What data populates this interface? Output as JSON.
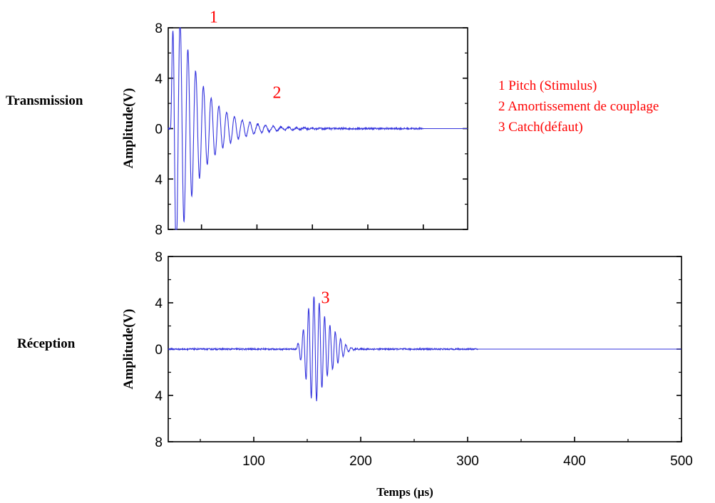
{
  "colors": {
    "signal": "#3333dd",
    "annotation": "#ff0000",
    "axis": "#000000"
  },
  "legend": {
    "items": [
      "1 Pitch (Stimulus)",
      "2 Amortissement de couplage",
      "3 Catch(défaut)"
    ]
  },
  "chart_data": [
    {
      "type": "line",
      "row_label": "Transmission",
      "ylabel": "Amplitude(V)",
      "xlabel": "",
      "xlim": [
        20,
        290
      ],
      "ylim": [
        -8,
        8
      ],
      "y_ticks": [
        8,
        4,
        0,
        -4,
        -8
      ],
      "y_tick_labels": [
        "8",
        "4",
        "0",
        "4",
        "8"
      ],
      "grid": false,
      "annotations": [
        {
          "text": "1",
          "x": 61,
          "y": 9
        },
        {
          "text": "2",
          "x": 118,
          "y": 3
        }
      ],
      "signal": {
        "description": "decaying burst",
        "start_x": 22,
        "peak_amplitude": 8,
        "decay_per_us": 0.045,
        "period_us": 7,
        "noise_until_x": 250,
        "noise_amplitude": 0.06
      }
    },
    {
      "type": "line",
      "row_label": "Réception",
      "ylabel": "Amplitude(V)",
      "xlabel": "Temps (µs)",
      "xlim": [
        20,
        500
      ],
      "ylim": [
        -8,
        8
      ],
      "x_ticks": [
        100,
        200,
        300,
        400,
        500
      ],
      "x_tick_labels": [
        "100",
        "200",
        "300",
        "400",
        "500"
      ],
      "y_ticks": [
        8,
        4,
        0,
        -4,
        -8
      ],
      "y_tick_labels": [
        "8",
        "4",
        "0",
        "4",
        "8"
      ],
      "grid": false,
      "annotations": [
        {
          "text": "3",
          "x": 167,
          "y": 4.6
        }
      ],
      "signal": {
        "description": "echo burst",
        "echo_center_x": 160,
        "peak_amplitude": 4.3,
        "period_us": 5,
        "noise_until_x": 310,
        "noise_amplitude": 0.06
      }
    }
  ]
}
